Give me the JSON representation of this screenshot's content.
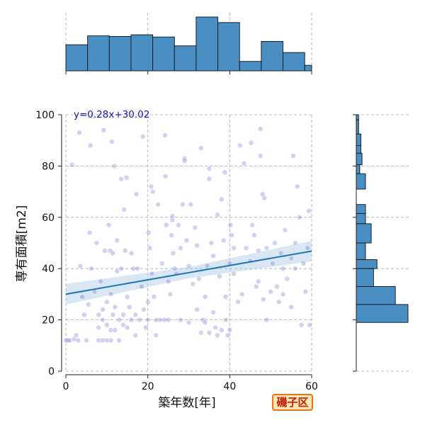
{
  "chart_data": {
    "type": "scatter",
    "xlabel": "築年数[年]",
    "ylabel": "専有面積[m2]",
    "xlim": [
      0,
      60
    ],
    "ylim": [
      0,
      100
    ],
    "xticks": [
      0,
      20,
      40,
      60
    ],
    "yticks": [
      0,
      20,
      40,
      60,
      80,
      100
    ],
    "regression": {
      "label": "y=0.28x+30.02",
      "slope": 0.28,
      "intercept": 30.02
    },
    "badge": "磯子区",
    "colors": {
      "point": "#4a48c8",
      "line": "#1f77b4",
      "band": "#aac8e6",
      "hist": "#4a8fc4"
    },
    "x_hist": {
      "bin_edges": [
        0,
        5.3,
        10.6,
        15.9,
        21.2,
        26.5,
        31.8,
        37.1,
        42.4,
        47.7,
        53,
        58.3,
        60
      ],
      "counts": [
        47,
        63,
        62,
        65,
        61,
        45,
        97,
        87,
        17,
        53,
        33,
        10
      ]
    },
    "y_hist": {
      "bin_edges": [
        100,
        98,
        92.5,
        88,
        85,
        80.5,
        77,
        71,
        65,
        61.5,
        57.5,
        50,
        43.5,
        40,
        33,
        26,
        19,
        11
      ],
      "counts": [
        2,
        2,
        4,
        4,
        5,
        3,
        8,
        0,
        8,
        8,
        13,
        8,
        18,
        15,
        34,
        45,
        0
      ]
    },
    "points": [
      [
        0,
        12
      ],
      [
        0.5,
        12
      ],
      [
        1,
        12
      ],
      [
        1.5,
        80.5
      ],
      [
        2,
        12.5
      ],
      [
        2.5,
        14
      ],
      [
        3,
        12
      ],
      [
        3.3,
        93
      ],
      [
        3.5,
        41
      ],
      [
        4,
        29
      ],
      [
        4.5,
        22
      ],
      [
        5,
        12
      ],
      [
        5.5,
        26
      ],
      [
        5.8,
        54
      ],
      [
        6,
        88
      ],
      [
        6.2,
        40
      ],
      [
        7,
        31
      ],
      [
        7.5,
        50
      ],
      [
        8,
        12
      ],
      [
        8,
        17
      ],
      [
        8,
        22
      ],
      [
        8.5,
        35
      ],
      [
        9,
        12
      ],
      [
        9,
        20
      ],
      [
        9,
        24
      ],
      [
        9.2,
        94
      ],
      [
        9.5,
        47
      ],
      [
        10,
        12
      ],
      [
        10,
        18
      ],
      [
        10,
        27
      ],
      [
        10.5,
        57
      ],
      [
        10.8,
        47
      ],
      [
        11,
        12
      ],
      [
        11,
        16
      ],
      [
        11,
        30
      ],
      [
        11.2,
        89.5
      ],
      [
        11.5,
        22
      ],
      [
        11.5,
        46
      ],
      [
        11.8,
        80
      ],
      [
        12,
        16
      ],
      [
        12,
        25
      ],
      [
        12.5,
        39
      ],
      [
        12.5,
        51
      ],
      [
        13,
        12
      ],
      [
        13,
        20
      ],
      [
        13.5,
        75
      ],
      [
        13.5,
        40
      ],
      [
        14,
        18
      ],
      [
        14,
        22
      ],
      [
        14.2,
        63
      ],
      [
        14.5,
        47
      ],
      [
        14.8,
        75.5
      ],
      [
        15,
        17
      ],
      [
        15,
        29
      ],
      [
        15.5,
        25
      ],
      [
        16,
        20
      ],
      [
        16,
        46
      ],
      [
        16.5,
        40
      ],
      [
        17,
        14
      ],
      [
        17,
        22
      ],
      [
        17.2,
        69
      ],
      [
        17.5,
        40
      ],
      [
        18,
        20
      ],
      [
        18.5,
        33
      ],
      [
        18.8,
        91.5
      ],
      [
        19,
        24
      ],
      [
        19.5,
        17
      ],
      [
        20,
        20
      ],
      [
        20,
        27
      ],
      [
        20.2,
        54
      ],
      [
        20.5,
        48
      ],
      [
        20.8,
        72
      ],
      [
        21,
        38
      ],
      [
        21.2,
        70
      ],
      [
        21.5,
        29
      ],
      [
        22,
        20
      ],
      [
        22,
        14
      ],
      [
        22.5,
        65
      ],
      [
        23,
        20
      ],
      [
        23.5,
        42
      ],
      [
        24,
        20
      ],
      [
        24.2,
        92
      ],
      [
        24.3,
        76
      ],
      [
        24.5,
        57
      ],
      [
        25,
        20
      ],
      [
        25,
        35
      ],
      [
        25.5,
        30
      ],
      [
        25.8,
        53
      ],
      [
        26,
        60.5
      ],
      [
        26,
        59
      ],
      [
        26.2,
        46
      ],
      [
        26.5,
        40
      ],
      [
        27,
        38
      ],
      [
        27.5,
        57
      ],
      [
        28,
        20
      ],
      [
        28,
        48
      ],
      [
        28.5,
        65
      ],
      [
        29,
        83
      ],
      [
        29,
        82
      ],
      [
        29.5,
        51
      ],
      [
        30,
        19
      ],
      [
        30,
        41
      ],
      [
        30.5,
        65
      ],
      [
        31,
        34
      ],
      [
        31.5,
        56
      ],
      [
        32,
        24
      ],
      [
        32,
        49
      ],
      [
        32.5,
        36
      ],
      [
        33,
        15
      ],
      [
        33,
        87
      ],
      [
        33.5,
        20
      ],
      [
        34,
        19
      ],
      [
        34,
        29
      ],
      [
        34.5,
        41
      ],
      [
        35,
        15
      ],
      [
        35,
        79
      ],
      [
        35,
        75
      ],
      [
        35.5,
        50
      ],
      [
        36,
        23
      ],
      [
        36,
        45
      ],
      [
        36.5,
        17
      ],
      [
        37,
        14
      ],
      [
        37,
        61
      ],
      [
        37.5,
        37
      ],
      [
        38,
        16
      ],
      [
        38,
        67
      ],
      [
        38.5,
        51
      ],
      [
        38.8,
        77.5
      ],
      [
        39,
        20
      ],
      [
        39,
        29
      ],
      [
        39.5,
        14
      ],
      [
        40,
        16
      ],
      [
        40,
        42
      ],
      [
        40.2,
        57
      ],
      [
        40.5,
        53
      ],
      [
        41,
        38
      ],
      [
        41,
        48
      ],
      [
        42,
        27
      ],
      [
        42.5,
        88
      ],
      [
        43,
        30
      ],
      [
        43.5,
        81
      ],
      [
        44,
        48
      ],
      [
        45,
        43
      ],
      [
        45.2,
        89
      ],
      [
        45.5,
        57
      ],
      [
        46,
        53
      ],
      [
        46.5,
        33
      ],
      [
        47,
        35
      ],
      [
        47,
        47
      ],
      [
        47.5,
        94.5
      ],
      [
        47.5,
        84
      ],
      [
        48,
        69
      ],
      [
        48.2,
        28
      ],
      [
        48.5,
        67.5
      ],
      [
        49,
        20
      ],
      [
        49,
        48
      ],
      [
        50,
        31
      ],
      [
        50.5,
        42
      ],
      [
        51,
        50
      ],
      [
        51.5,
        33
      ],
      [
        52,
        27
      ],
      [
        52.5,
        46
      ],
      [
        53,
        40
      ],
      [
        53,
        30
      ],
      [
        53.5,
        55
      ],
      [
        54,
        36
      ],
      [
        55,
        25
      ],
      [
        55,
        44
      ],
      [
        55.5,
        84
      ],
      [
        56,
        40
      ],
      [
        56,
        50
      ],
      [
        56.5,
        72
      ],
      [
        57,
        60
      ],
      [
        57.5,
        18
      ],
      [
        58,
        42
      ],
      [
        58.5,
        31
      ],
      [
        59,
        48
      ],
      [
        59.3,
        62.5
      ],
      [
        59.5,
        18
      ]
    ]
  }
}
